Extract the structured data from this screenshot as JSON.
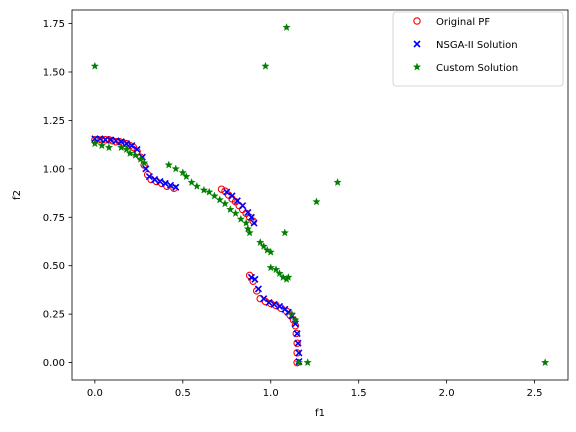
{
  "chart_data": {
    "type": "scatter",
    "title": "",
    "xlabel": "f1",
    "ylabel": "f2",
    "xlim": [
      -0.13,
      2.69
    ],
    "ylim": [
      -0.09,
      1.82
    ],
    "xticks": [
      0.0,
      0.5,
      1.0,
      1.5,
      2.0,
      2.5
    ],
    "xtick_labels": [
      "0.0",
      "0.5",
      "1.0",
      "1.5",
      "2.0",
      "2.5"
    ],
    "yticks": [
      0.0,
      0.25,
      0.5,
      0.75,
      1.0,
      1.25,
      1.5,
      1.75
    ],
    "ytick_labels": [
      "0.00",
      "0.25",
      "0.50",
      "0.75",
      "1.00",
      "1.25",
      "1.50",
      "1.75"
    ],
    "grid": false,
    "legend": {
      "placement": "top-right",
      "entries": [
        {
          "label": "Original PF",
          "marker": "circle-open",
          "color": "#ff0000"
        },
        {
          "label": "NSGA-II Solution",
          "marker": "x",
          "color": "#0000ff"
        },
        {
          "label": "Custom Solution",
          "marker": "star",
          "color": "#008000"
        }
      ]
    },
    "series": [
      {
        "name": "Original PF",
        "marker": "circle-open",
        "color": "#ff0000",
        "points": [
          [
            0.0,
            1.15
          ],
          [
            0.02,
            1.15
          ],
          [
            0.04,
            1.15
          ],
          [
            0.06,
            1.15
          ],
          [
            0.08,
            1.15
          ],
          [
            0.1,
            1.145
          ],
          [
            0.12,
            1.14
          ],
          [
            0.14,
            1.14
          ],
          [
            0.16,
            1.135
          ],
          [
            0.18,
            1.13
          ],
          [
            0.2,
            1.12
          ],
          [
            0.22,
            1.11
          ],
          [
            0.24,
            1.09
          ],
          [
            0.26,
            1.06
          ],
          [
            0.28,
            1.02
          ],
          [
            0.3,
            0.97
          ],
          [
            0.32,
            0.945
          ],
          [
            0.35,
            0.935
          ],
          [
            0.38,
            0.925
          ],
          [
            0.41,
            0.91
          ],
          [
            0.45,
            0.9
          ],
          [
            0.72,
            0.895
          ],
          [
            0.74,
            0.885
          ],
          [
            0.76,
            0.865
          ],
          [
            0.78,
            0.845
          ],
          [
            0.8,
            0.83
          ],
          [
            0.82,
            0.81
          ],
          [
            0.84,
            0.79
          ],
          [
            0.86,
            0.77
          ],
          [
            0.88,
            0.75
          ],
          [
            0.9,
            0.73
          ],
          [
            0.88,
            0.45
          ],
          [
            0.9,
            0.42
          ],
          [
            0.92,
            0.37
          ],
          [
            0.94,
            0.33
          ],
          [
            0.97,
            0.315
          ],
          [
            1.0,
            0.305
          ],
          [
            1.03,
            0.295
          ],
          [
            1.06,
            0.28
          ],
          [
            1.09,
            0.265
          ],
          [
            1.11,
            0.245
          ],
          [
            1.13,
            0.22
          ],
          [
            1.14,
            0.19
          ],
          [
            1.145,
            0.15
          ],
          [
            1.15,
            0.1
          ],
          [
            1.15,
            0.05
          ],
          [
            1.15,
            0.0
          ]
        ]
      },
      {
        "name": "NSGA-II Solution",
        "marker": "x",
        "color": "#0000ff",
        "points": [
          [
            0.0,
            1.155
          ],
          [
            0.03,
            1.155
          ],
          [
            0.06,
            1.15
          ],
          [
            0.09,
            1.15
          ],
          [
            0.12,
            1.145
          ],
          [
            0.15,
            1.14
          ],
          [
            0.18,
            1.13
          ],
          [
            0.21,
            1.12
          ],
          [
            0.24,
            1.1
          ],
          [
            0.27,
            1.06
          ],
          [
            0.29,
            1.0
          ],
          [
            0.31,
            0.96
          ],
          [
            0.34,
            0.945
          ],
          [
            0.37,
            0.935
          ],
          [
            0.4,
            0.925
          ],
          [
            0.43,
            0.915
          ],
          [
            0.46,
            0.905
          ],
          [
            0.75,
            0.88
          ],
          [
            0.78,
            0.86
          ],
          [
            0.81,
            0.835
          ],
          [
            0.84,
            0.81
          ],
          [
            0.87,
            0.775
          ],
          [
            0.89,
            0.75
          ],
          [
            0.905,
            0.72
          ],
          [
            0.89,
            0.44
          ],
          [
            0.91,
            0.43
          ],
          [
            0.93,
            0.38
          ],
          [
            0.96,
            0.33
          ],
          [
            0.99,
            0.31
          ],
          [
            1.02,
            0.3
          ],
          [
            1.05,
            0.29
          ],
          [
            1.08,
            0.275
          ],
          [
            1.1,
            0.26
          ],
          [
            1.12,
            0.24
          ],
          [
            1.14,
            0.2
          ],
          [
            1.15,
            0.15
          ],
          [
            1.155,
            0.1
          ],
          [
            1.16,
            0.05
          ],
          [
            1.16,
            0.005
          ]
        ]
      },
      {
        "name": "Custom Solution",
        "marker": "star",
        "color": "#008000",
        "points": [
          [
            0.0,
            1.53
          ],
          [
            0.0,
            1.13
          ],
          [
            0.04,
            1.12
          ],
          [
            0.08,
            1.11
          ],
          [
            0.15,
            1.11
          ],
          [
            0.18,
            1.1
          ],
          [
            0.2,
            1.08
          ],
          [
            0.23,
            1.07
          ],
          [
            0.26,
            1.05
          ],
          [
            0.28,
            1.03
          ],
          [
            0.42,
            1.02
          ],
          [
            0.46,
            1.0
          ],
          [
            0.5,
            0.98
          ],
          [
            0.52,
            0.96
          ],
          [
            0.55,
            0.93
          ],
          [
            0.58,
            0.91
          ],
          [
            0.62,
            0.89
          ],
          [
            0.65,
            0.88
          ],
          [
            0.68,
            0.86
          ],
          [
            0.71,
            0.84
          ],
          [
            0.74,
            0.82
          ],
          [
            0.77,
            0.79
          ],
          [
            0.8,
            0.77
          ],
          [
            0.83,
            0.74
          ],
          [
            0.86,
            0.72
          ],
          [
            0.87,
            0.69
          ],
          [
            0.88,
            0.67
          ],
          [
            0.94,
            0.62
          ],
          [
            0.96,
            0.6
          ],
          [
            0.98,
            0.58
          ],
          [
            1.0,
            0.57
          ],
          [
            1.0,
            0.49
          ],
          [
            1.03,
            0.48
          ],
          [
            1.05,
            0.46
          ],
          [
            1.07,
            0.44
          ],
          [
            1.09,
            0.43
          ],
          [
            1.08,
            0.67
          ],
          [
            1.1,
            0.44
          ],
          [
            1.12,
            0.25
          ],
          [
            1.14,
            0.22
          ],
          [
            1.16,
            0.0
          ],
          [
            1.21,
            0.0
          ],
          [
            1.26,
            0.83
          ],
          [
            1.38,
            0.93
          ],
          [
            0.97,
            1.53
          ],
          [
            1.09,
            1.73
          ],
          [
            2.56,
            0.0
          ]
        ]
      }
    ]
  }
}
